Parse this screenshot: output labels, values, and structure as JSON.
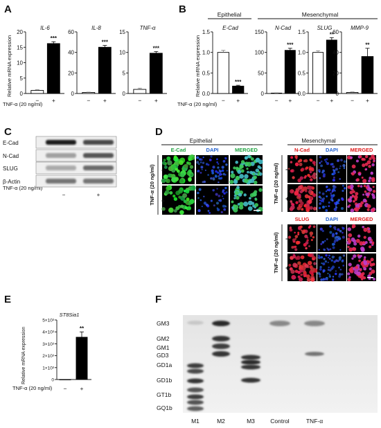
{
  "panel_letters": [
    "A",
    "B",
    "C",
    "D",
    "E",
    "F"
  ],
  "treatment_label": "TNF-α (20 ng/ml)",
  "treatment_ticks": [
    "−",
    "+"
  ],
  "ylabel_relative": "Relative mRNA expression",
  "panelA": {
    "charts": [
      {
        "gene": "IL-6",
        "ylim": [
          0,
          20
        ],
        "yticks": [
          "0",
          "5",
          "10",
          "15",
          "20"
        ],
        "values": [
          1.0,
          16.2
        ],
        "errors": [
          0.2,
          0.6
        ],
        "sig": "***"
      },
      {
        "gene": "IL-8",
        "ylim": [
          0,
          60
        ],
        "yticks": [
          "0",
          "20",
          "40",
          "60"
        ],
        "values": [
          1.0,
          45.0
        ],
        "errors": [
          0.3,
          1.8
        ],
        "sig": "***"
      },
      {
        "gene": "TNF-α",
        "ylim": [
          0,
          15
        ],
        "yticks": [
          "0",
          "5",
          "10",
          "15"
        ],
        "values": [
          1.0,
          9.8
        ],
        "errors": [
          0.3,
          0.4
        ],
        "sig": "***"
      }
    ]
  },
  "panelB": {
    "group_epithelial": "Epithelial",
    "group_mesenchymal": "Mesenchymal",
    "charts": [
      {
        "gene": "E-Cad",
        "ylim": [
          0,
          1.5
        ],
        "yticks": [
          "0.0",
          "0.5",
          "1.0",
          "1.5"
        ],
        "values": [
          1.0,
          0.18
        ],
        "errors": [
          0.05,
          0.02
        ],
        "sig": "***"
      },
      {
        "gene": "N-Cad",
        "ylim": [
          0,
          150
        ],
        "yticks": [
          "0",
          "50",
          "100",
          "150"
        ],
        "values": [
          1.0,
          105.0
        ],
        "errors": [
          0.5,
          5.0
        ],
        "sig": "***"
      },
      {
        "gene": "SLUG",
        "ylim": [
          0,
          1.5
        ],
        "yticks": [
          "0.0",
          "0.5",
          "1.0",
          "1.5"
        ],
        "values": [
          1.0,
          1.3
        ],
        "errors": [
          0.04,
          0.06
        ],
        "sig": "**"
      },
      {
        "gene": "MMP-9",
        "ylim": [
          0,
          60
        ],
        "yticks": [
          "0",
          "20",
          "40",
          "60"
        ],
        "values": [
          1.0,
          36.0
        ],
        "errors": [
          0.5,
          8.0
        ],
        "sig": "**"
      }
    ]
  },
  "panelC": {
    "proteins": [
      "E-Cad",
      "N-Cad",
      "SLUG",
      "β-Actin"
    ],
    "band_intensity": [
      [
        0.95,
        0.75
      ],
      [
        0.35,
        0.7
      ],
      [
        0.3,
        0.6
      ],
      [
        0.55,
        0.55
      ]
    ]
  },
  "panelD": {
    "epithelial_title": "Epithelial",
    "mesenchymal_title": "Mesenchymal",
    "side_label": "TNF-α (20 ng/ml)",
    "row_signs": [
      "−",
      "+"
    ],
    "ecad_headers": [
      {
        "text": "E-Cad",
        "color": "#22a544"
      },
      {
        "text": "DAPI",
        "color": "#1f5fd0"
      },
      {
        "text": "MERGED",
        "color": "#22a544"
      }
    ],
    "ncad_headers": [
      {
        "text": "N-Cad",
        "color": "#e01b1b"
      },
      {
        "text": "DAPI",
        "color": "#1f5fd0"
      },
      {
        "text": "MERGED",
        "color": "#e01b1b"
      }
    ],
    "slug_headers": [
      {
        "text": "SLUG",
        "color": "#e01b1b"
      },
      {
        "text": "DAPI",
        "color": "#1f5fd0"
      },
      {
        "text": "MERGED",
        "color": "#e01b1b"
      }
    ]
  },
  "panelE": {
    "gene": "ST8Sia1",
    "ylim": [
      0,
      5000
    ],
    "yticks": [
      "0",
      "1×10³",
      "2×10³",
      "3×10³",
      "4×10³",
      "5×10³"
    ],
    "values": [
      1.0,
      3550
    ],
    "errors": [
      0,
      450
    ],
    "sig": "**"
  },
  "panelF": {
    "ganglioside_labels": [
      "GM3",
      "GM2",
      "GM1",
      "GD3",
      "GD1a",
      "GD1b",
      "GT1b",
      "GQ1b"
    ],
    "lane_labels": [
      "M1",
      "M2",
      "M3",
      "Control",
      "TNF-α"
    ]
  }
}
